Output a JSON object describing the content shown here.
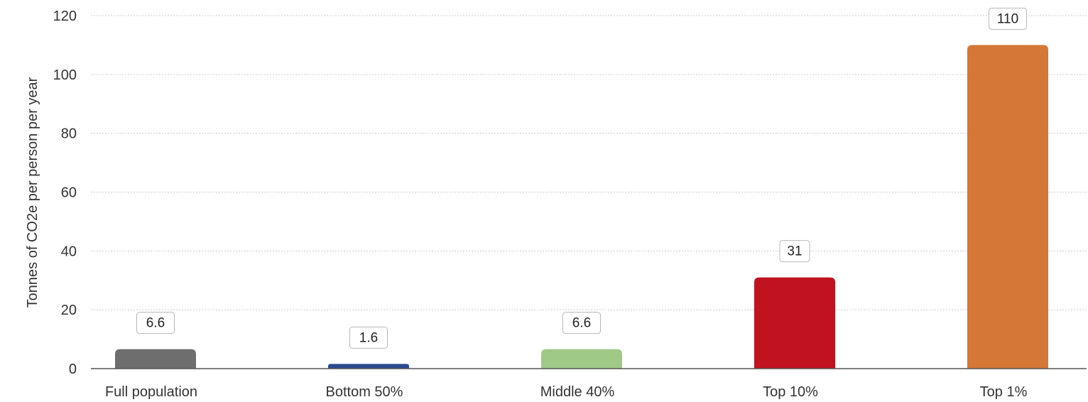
{
  "chart_data": {
    "type": "bar",
    "title": "",
    "xlabel": "",
    "ylabel": "Tonnes of CO2e per person per year",
    "ylim": [
      0,
      120
    ],
    "yticks": [
      0,
      20,
      40,
      60,
      80,
      100,
      120
    ],
    "grid": true,
    "legend": "none",
    "categories": [
      "Full population",
      "Bottom 50%",
      "Middle 40%",
      "Top 10%",
      "Top 1%"
    ],
    "values": [
      6.6,
      1.6,
      6.6,
      31,
      110
    ],
    "data_labels": [
      "6.6",
      "1.6",
      "6.6",
      "31",
      "110"
    ],
    "colors": [
      "#6e6e6e",
      "#2b4a8f",
      "#9fc987",
      "#c0121f",
      "#d57737"
    ]
  }
}
